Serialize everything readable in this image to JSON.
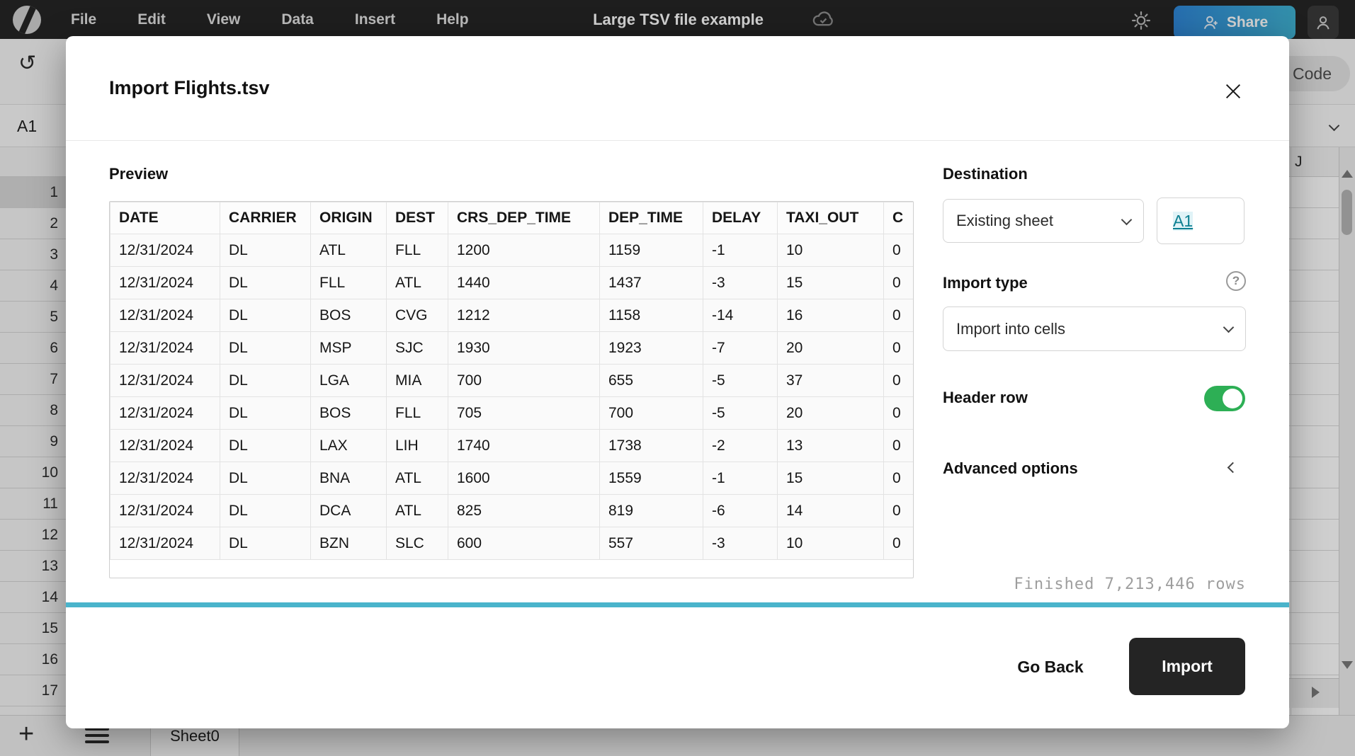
{
  "chrome": {
    "menu": [
      "File",
      "Edit",
      "View",
      "Data",
      "Insert",
      "Help"
    ],
    "doc_title": "Large TSV file example",
    "share_label": "Share"
  },
  "background": {
    "cell_ref": "A1",
    "code_button_label": "Code",
    "visible_column": "J",
    "row_numbers": [
      "1",
      "2",
      "3",
      "4",
      "5",
      "6",
      "7",
      "8",
      "9",
      "10",
      "11",
      "12",
      "13",
      "14",
      "15",
      "16",
      "17"
    ],
    "selected_row": "1",
    "sheet_tab": "Sheet0"
  },
  "modal": {
    "title": "Import Flights.tsv",
    "preview_label": "Preview",
    "table": {
      "headers": [
        "DATE",
        "CARRIER",
        "ORIGIN",
        "DEST",
        "CRS_DEP_TIME",
        "DEP_TIME",
        "DELAY",
        "TAXI_OUT",
        "C"
      ],
      "rows": [
        [
          "12/31/2024",
          "DL",
          "ATL",
          "FLL",
          "1200",
          "1159",
          "-1",
          "10",
          "0"
        ],
        [
          "12/31/2024",
          "DL",
          "FLL",
          "ATL",
          "1440",
          "1437",
          "-3",
          "15",
          "0"
        ],
        [
          "12/31/2024",
          "DL",
          "BOS",
          "CVG",
          "1212",
          "1158",
          "-14",
          "16",
          "0"
        ],
        [
          "12/31/2024",
          "DL",
          "MSP",
          "SJC",
          "1930",
          "1923",
          "-7",
          "20",
          "0"
        ],
        [
          "12/31/2024",
          "DL",
          "LGA",
          "MIA",
          "700",
          "655",
          "-5",
          "37",
          "0"
        ],
        [
          "12/31/2024",
          "DL",
          "BOS",
          "FLL",
          "705",
          "700",
          "-5",
          "20",
          "0"
        ],
        [
          "12/31/2024",
          "DL",
          "LAX",
          "LIH",
          "1740",
          "1738",
          "-2",
          "13",
          "0"
        ],
        [
          "12/31/2024",
          "DL",
          "BNA",
          "ATL",
          "1600",
          "1559",
          "-1",
          "15",
          "0"
        ],
        [
          "12/31/2024",
          "DL",
          "DCA",
          "ATL",
          "825",
          "819",
          "-6",
          "14",
          "0"
        ],
        [
          "12/31/2024",
          "DL",
          "BZN",
          "SLC",
          "600",
          "557",
          "-3",
          "10",
          "0"
        ]
      ]
    },
    "destination": {
      "label": "Destination",
      "sheet_value": "Existing sheet",
      "cell_value": "A1"
    },
    "import_type": {
      "label": "Import type",
      "value": "Import into cells"
    },
    "header_row_label": "Header row",
    "header_row_enabled": true,
    "advanced_label": "Advanced options",
    "status_text": "Finished 7,213,446 rows",
    "go_back_label": "Go Back",
    "import_label": "Import"
  },
  "colors": {
    "accent-share-a": "#2f86d6",
    "accent-share-b": "#3fb0d0",
    "progress-teal": "#4ab4cb",
    "toggle-green": "#2daf55",
    "link-teal": "#0c7f91",
    "import-dark": "#242424"
  }
}
